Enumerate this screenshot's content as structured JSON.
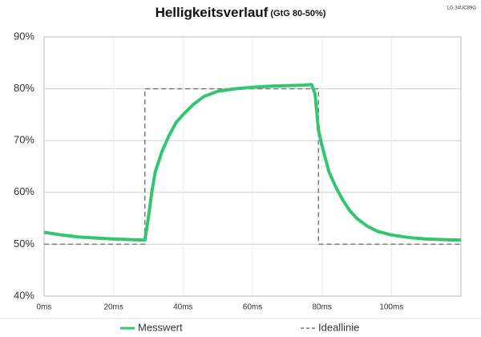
{
  "chart_data": {
    "type": "line",
    "title": "Helligkeitsverlauf",
    "subtitle": "(GtG 80-50%)",
    "corner_label": "LG 34UC89G",
    "xlim": [
      0,
      120
    ],
    "ylim": [
      40,
      90
    ],
    "xticks": [
      {
        "value": 0,
        "label": "0ms"
      },
      {
        "value": 20,
        "label": "20ms"
      },
      {
        "value": 40,
        "label": "40ms"
      },
      {
        "value": 60,
        "label": "60ms"
      },
      {
        "value": 80,
        "label": "80ms"
      },
      {
        "value": 100,
        "label": "100ms"
      }
    ],
    "yticks": [
      {
        "value": 40,
        "label": "40%"
      },
      {
        "value": 50,
        "label": "50%"
      },
      {
        "value": 60,
        "label": "60%"
      },
      {
        "value": 70,
        "label": "70%"
      },
      {
        "value": 80,
        "label": "80%"
      },
      {
        "value": 90,
        "label": "90%"
      }
    ],
    "grid": true,
    "series": [
      {
        "name": "Messwert",
        "color": "#34c472",
        "style": "solid",
        "x": [
          0,
          5,
          10,
          15,
          20,
          25,
          29,
          30,
          31,
          32,
          34,
          36,
          38,
          40,
          43,
          46,
          50,
          55,
          60,
          65,
          70,
          75,
          77,
          78,
          79,
          80,
          82,
          84,
          86,
          88,
          90,
          93,
          96,
          100,
          105,
          110,
          115,
          120
        ],
        "values": [
          52.3,
          51.8,
          51.4,
          51.2,
          51.0,
          50.9,
          50.8,
          55,
          60,
          64,
          68,
          71,
          73.5,
          75,
          77,
          78.5,
          79.5,
          80,
          80.3,
          80.5,
          80.6,
          80.7,
          80.8,
          79,
          72,
          69,
          64,
          61,
          58.5,
          56.5,
          55,
          53.5,
          52.5,
          51.8,
          51.3,
          51,
          50.9,
          50.8
        ]
      },
      {
        "name": "Ideallinie",
        "color": "#7a7a7a",
        "style": "dashed",
        "x": [
          0,
          29,
          29,
          79,
          79,
          120
        ],
        "values": [
          50,
          50,
          80,
          80,
          50,
          50
        ]
      }
    ]
  }
}
